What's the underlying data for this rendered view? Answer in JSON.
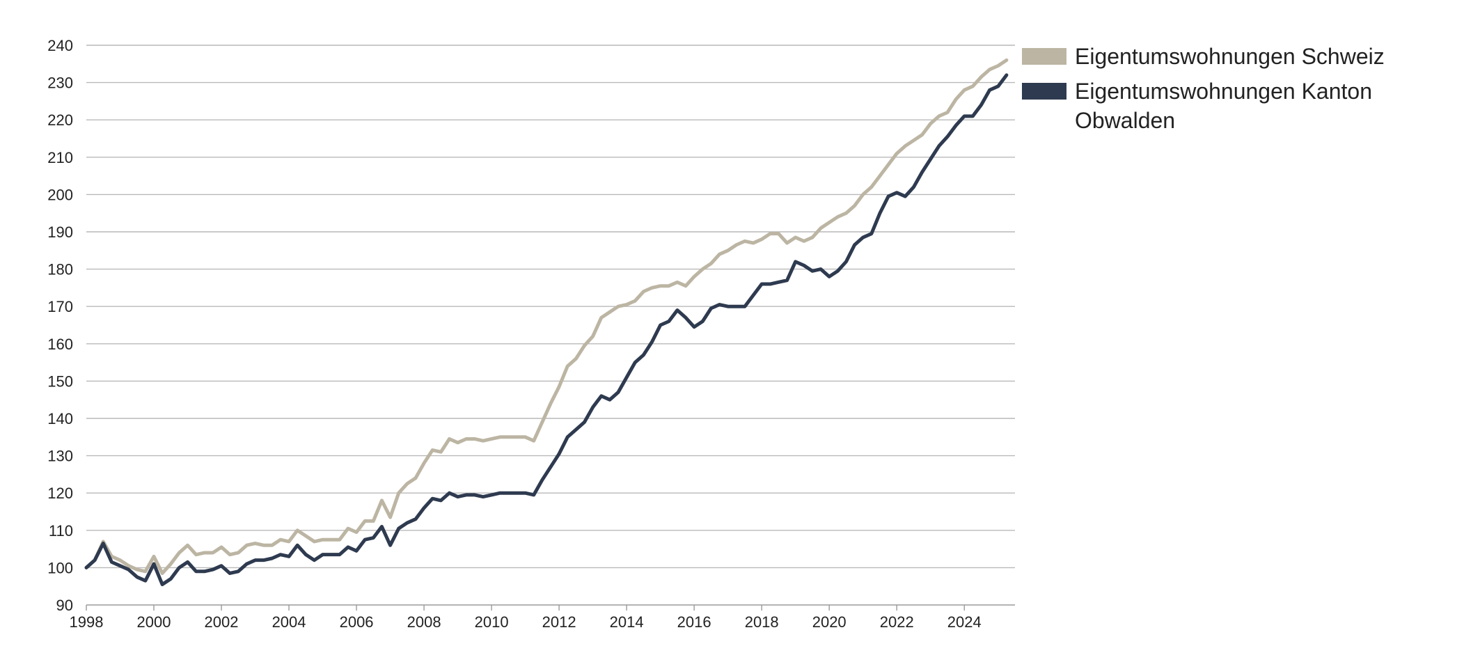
{
  "chart_data": {
    "type": "line",
    "title": "",
    "xlabel": "",
    "ylabel": "",
    "xlim": [
      1998,
      2025.5
    ],
    "ylim": [
      90,
      240
    ],
    "y_ticks": [
      90,
      100,
      110,
      120,
      130,
      140,
      150,
      160,
      170,
      180,
      190,
      200,
      210,
      220,
      230,
      240
    ],
    "x_ticks": [
      1998,
      2000,
      2002,
      2004,
      2006,
      2008,
      2010,
      2012,
      2014,
      2016,
      2018,
      2020,
      2022,
      2024
    ],
    "grid": "horizontal",
    "legend_position": "top-right",
    "x": [
      1998.0,
      1998.25,
      1998.5,
      1998.75,
      1999.0,
      1999.25,
      1999.5,
      1999.75,
      2000.0,
      2000.25,
      2000.5,
      2000.75,
      2001.0,
      2001.25,
      2001.5,
      2001.75,
      2002.0,
      2002.25,
      2002.5,
      2002.75,
      2003.0,
      2003.25,
      2003.5,
      2003.75,
      2004.0,
      2004.25,
      2004.5,
      2004.75,
      2005.0,
      2005.25,
      2005.5,
      2005.75,
      2006.0,
      2006.25,
      2006.5,
      2006.75,
      2007.0,
      2007.25,
      2007.5,
      2007.75,
      2008.0,
      2008.25,
      2008.5,
      2008.75,
      2009.0,
      2009.25,
      2009.5,
      2009.75,
      2010.0,
      2010.25,
      2010.5,
      2010.75,
      2011.0,
      2011.25,
      2011.5,
      2011.75,
      2012.0,
      2012.25,
      2012.5,
      2012.75,
      2013.0,
      2013.25,
      2013.5,
      2013.75,
      2014.0,
      2014.25,
      2014.5,
      2014.75,
      2015.0,
      2015.25,
      2015.5,
      2015.75,
      2016.0,
      2016.25,
      2016.5,
      2016.75,
      2017.0,
      2017.25,
      2017.5,
      2017.75,
      2018.0,
      2018.25,
      2018.5,
      2018.75,
      2019.0,
      2019.25,
      2019.5,
      2019.75,
      2020.0,
      2020.25,
      2020.5,
      2020.75,
      2021.0,
      2021.25,
      2021.5,
      2021.75,
      2022.0,
      2022.25,
      2022.5,
      2022.75,
      2023.0,
      2023.25,
      2023.5,
      2023.75,
      2024.0,
      2024.25,
      2024.5,
      2024.75,
      2025.0,
      2025.25
    ],
    "series": [
      {
        "name": "Eigentumswohnungen Schweiz",
        "color": "#bcb5a3",
        "values": [
          100.0,
          102.0,
          107.0,
          103.0,
          102.0,
          100.5,
          99.5,
          99.0,
          103.0,
          98.5,
          101.0,
          104.0,
          106.0,
          103.5,
          104.0,
          104.0,
          105.5,
          103.5,
          104.0,
          106.0,
          106.5,
          106.0,
          106.0,
          107.5,
          107.0,
          110.0,
          108.5,
          107.0,
          107.5,
          107.5,
          107.5,
          110.5,
          109.5,
          112.5,
          112.5,
          118.0,
          113.5,
          120.0,
          122.5,
          124.0,
          128.0,
          131.5,
          131.0,
          134.5,
          133.5,
          134.5,
          134.5,
          134.0,
          134.5,
          135.0,
          135.0,
          135.0,
          135.0,
          134.0,
          139.0,
          144.0,
          148.5,
          154.0,
          156.0,
          159.5,
          162.0,
          167.0,
          168.5,
          170.0,
          170.5,
          171.5,
          174.0,
          175.0,
          175.5,
          175.5,
          176.5,
          175.5,
          178.0,
          180.0,
          181.5,
          184.0,
          185.0,
          186.5,
          187.5,
          187.0,
          188.0,
          189.5,
          189.5,
          187.0,
          188.5,
          187.5,
          188.5,
          191.0,
          192.5,
          194.0,
          195.0,
          197.0,
          200.0,
          202.0,
          205.0,
          208.0,
          211.0,
          213.0,
          214.5,
          216.0,
          219.0,
          221.0,
          222.0,
          225.5,
          228.0,
          229.0,
          231.5,
          233.5,
          234.5,
          236.0
        ]
      },
      {
        "name": "Eigentumswohnungen Kanton Obwalden",
        "color": "#2e3a4f",
        "values": [
          100.0,
          102.0,
          106.5,
          101.5,
          100.5,
          99.5,
          97.5,
          96.5,
          101.0,
          95.5,
          97.0,
          100.0,
          101.5,
          99.0,
          99.0,
          99.5,
          100.5,
          98.5,
          99.0,
          101.0,
          102.0,
          102.0,
          102.5,
          103.5,
          103.0,
          106.0,
          103.5,
          102.0,
          103.5,
          103.5,
          103.5,
          105.5,
          104.5,
          107.5,
          108.0,
          111.0,
          106.0,
          110.5,
          112.0,
          113.0,
          116.0,
          118.5,
          118.0,
          120.0,
          119.0,
          119.5,
          119.5,
          119.0,
          119.5,
          120.0,
          120.0,
          120.0,
          120.0,
          119.5,
          123.5,
          127.0,
          130.5,
          135.0,
          137.0,
          139.0,
          143.0,
          146.0,
          145.0,
          147.0,
          151.0,
          155.0,
          157.0,
          160.5,
          165.0,
          166.0,
          169.0,
          167.0,
          164.5,
          166.0,
          169.5,
          170.5,
          170.0,
          170.0,
          170.0,
          173.0,
          176.0,
          176.0,
          176.5,
          177.0,
          182.0,
          181.0,
          179.5,
          180.0,
          178.0,
          179.5,
          182.0,
          186.5,
          188.5,
          189.5,
          195.0,
          199.5,
          200.5,
          199.5,
          202.0,
          206.0,
          209.5,
          213.0,
          215.5,
          218.5,
          221.0,
          221.0,
          224.0,
          228.0,
          229.0,
          232.0
        ]
      }
    ]
  }
}
